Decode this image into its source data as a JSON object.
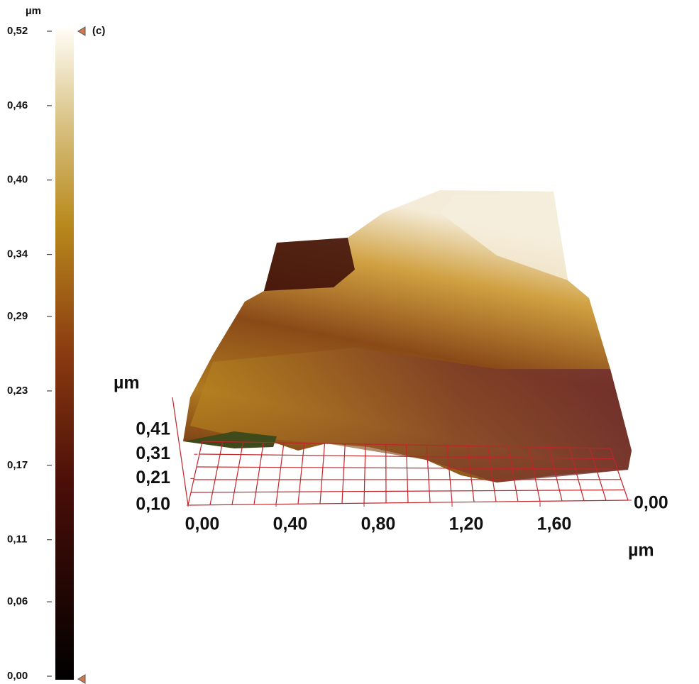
{
  "chart_data": {
    "type": "surface3d",
    "label": "(c)",
    "colorbar_unit": "µm",
    "colorbar_lim": [
      0,
      0.52
    ],
    "colorbar_ticks": [
      {
        "value": 0,
        "label": "0,00"
      },
      {
        "value": 0.06,
        "label": "0,06"
      },
      {
        "value": 0.11,
        "label": "0,11"
      },
      {
        "value": 0.17,
        "label": "0,17"
      },
      {
        "value": 0.23,
        "label": "0,23"
      },
      {
        "value": 0.29,
        "label": "0,29"
      },
      {
        "value": 0.34,
        "label": "0,34"
      },
      {
        "value": 0.4,
        "label": "0,40"
      },
      {
        "value": 0.46,
        "label": "0,46"
      },
      {
        "value": 0.52,
        "label": "0,52"
      }
    ],
    "x_unit": "µm",
    "xlim": [
      0,
      2.0
    ],
    "xticks": [
      {
        "value": 0,
        "label": "0,00"
      },
      {
        "value": 0.4,
        "label": "0,40"
      },
      {
        "value": 0.8,
        "label": "0,80"
      },
      {
        "value": 1.2,
        "label": "1,20"
      },
      {
        "value": 1.6,
        "label": "1,60"
      }
    ],
    "y_unit": "µm",
    "yticks": [
      {
        "value": 0,
        "label": "0,00"
      }
    ],
    "z_unit": "µm",
    "zlim": [
      0.1,
      0.41
    ],
    "zticks": [
      {
        "value": 0.1,
        "label": "0,10"
      },
      {
        "value": 0.21,
        "label": "0,21"
      },
      {
        "value": 0.31,
        "label": "0,31"
      },
      {
        "value": 0.41,
        "label": "0,41"
      }
    ]
  }
}
